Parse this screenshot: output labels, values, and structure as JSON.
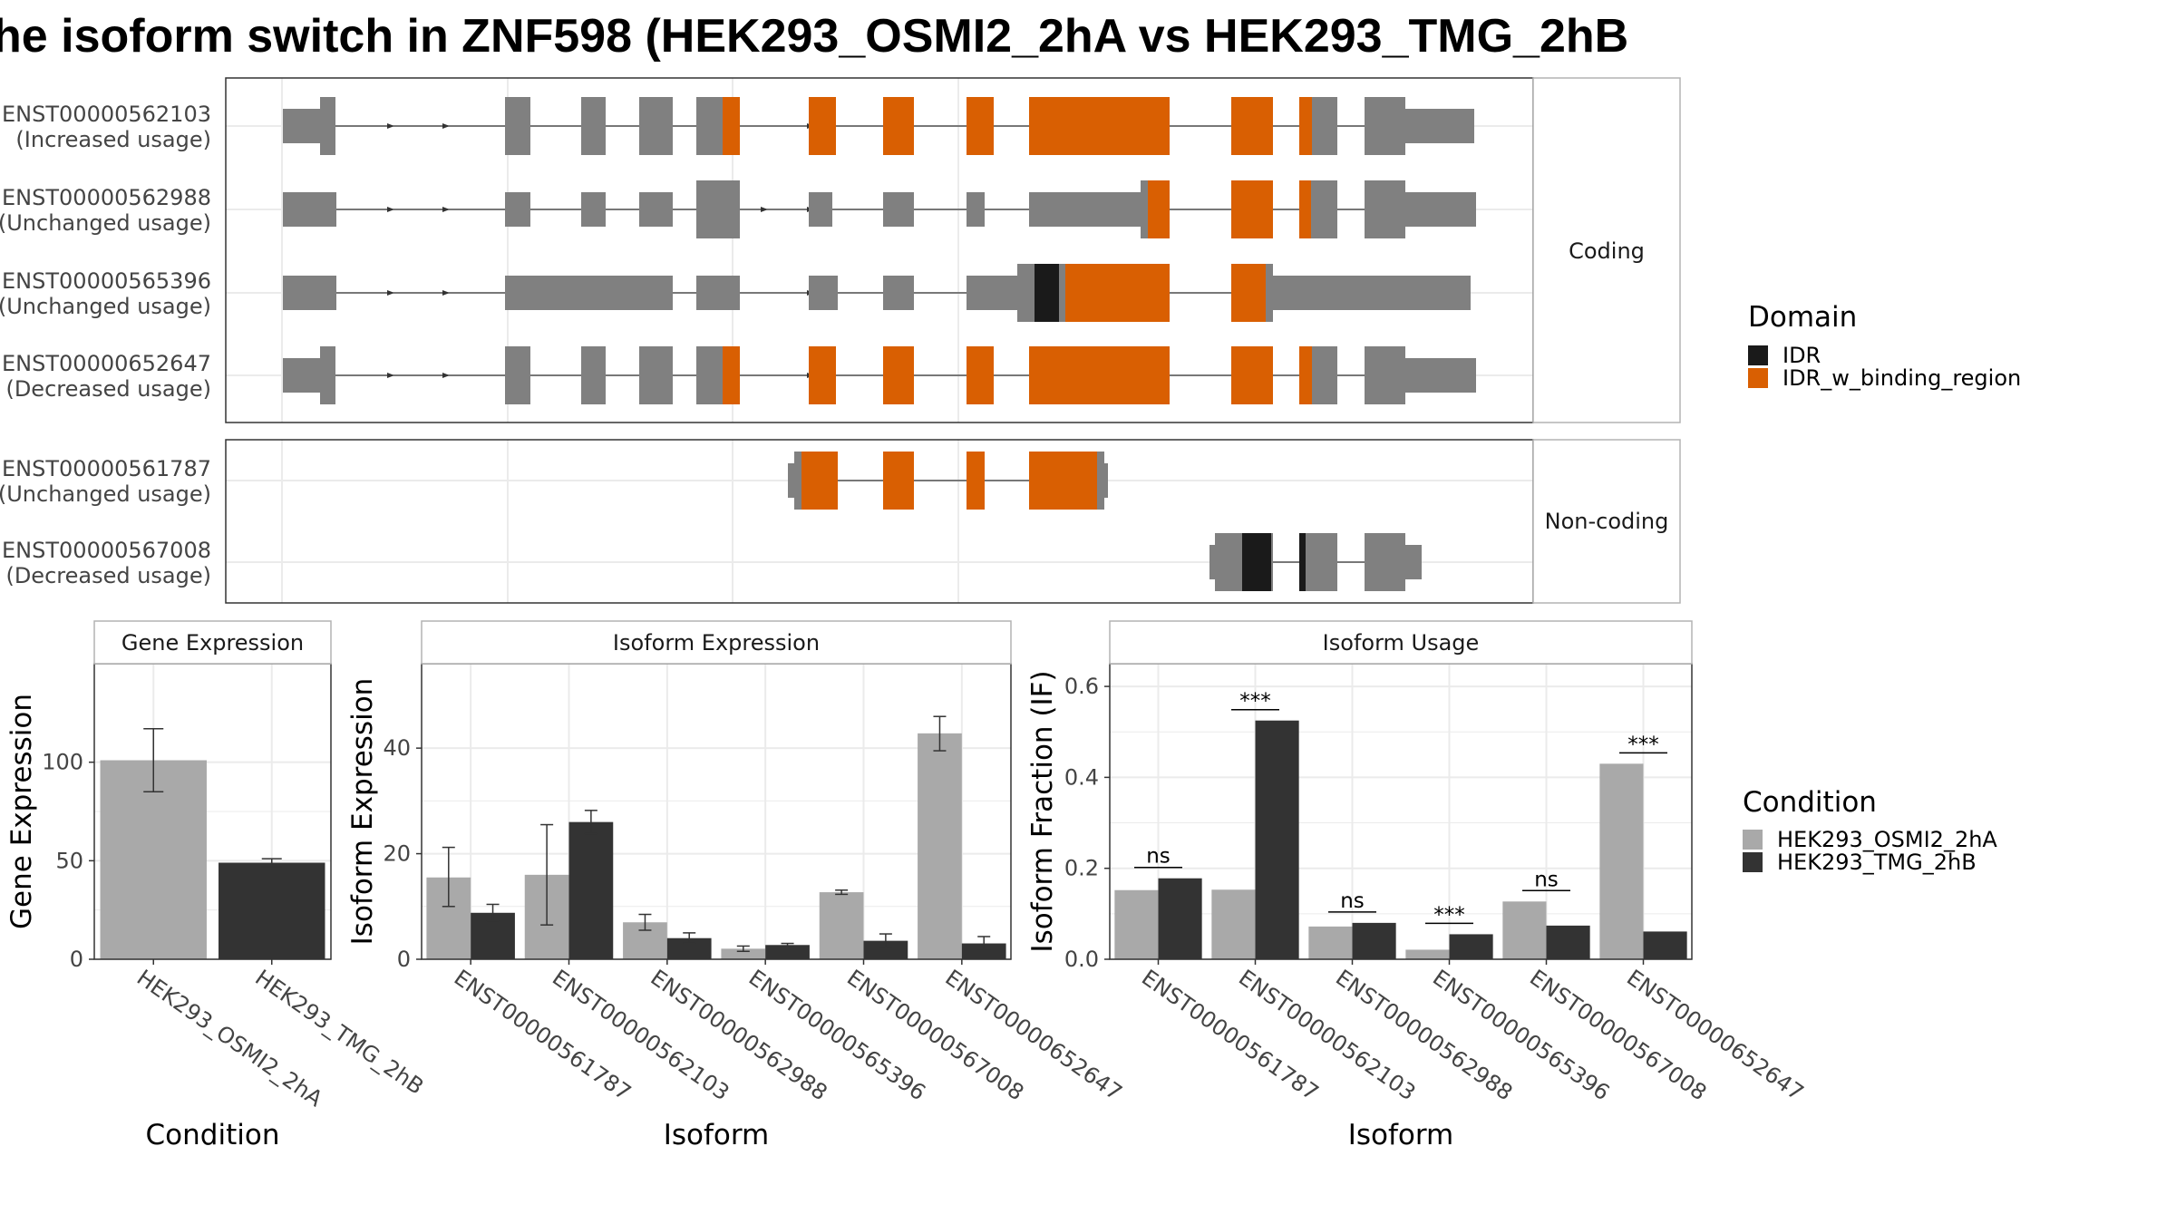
{
  "title": "he isoform switch in ZNF598 (HEK293_OSMI2_2hA vs HEK293_TMG_2hB",
  "colors": {
    "exon": "#808080",
    "IDR": "#1a1a1a",
    "IDR_w_binding_region": "#d95f02",
    "cond1": "#a9a9a9",
    "cond2": "#333333",
    "panel_border": "#333333",
    "strip_border": "#b3b3b3",
    "grid": "#ebebeb"
  },
  "structure": {
    "coding_strip": "Coding",
    "noncoding_strip": "Non-coding",
    "coding": [
      {
        "id": "ENST00000562103",
        "usage": "(Increased usage)"
      },
      {
        "id": "ENST00000562988",
        "usage": "(Unchanged usage)"
      },
      {
        "id": "ENST00000565396",
        "usage": "(Unchanged usage)"
      },
      {
        "id": "ENST00000652647",
        "usage": "(Decreased usage)"
      }
    ],
    "noncoding": [
      {
        "id": "ENST00000561787",
        "usage": "(Unchanged usage)"
      },
      {
        "id": "ENST00000567008",
        "usage": "(Decreased usage)"
      }
    ]
  },
  "legend": {
    "domain_title": "Domain",
    "domain_items": [
      "IDR",
      "IDR_w_binding_region"
    ],
    "condition_title": "Condition",
    "condition_items": [
      "HEK293_OSMI2_2hA",
      "HEK293_TMG_2hB"
    ]
  },
  "chart_data": [
    {
      "type": "bar",
      "title": "Gene Expression",
      "xlabel": "Condition",
      "ylabel": "Gene Expression",
      "categories": [
        "HEK293_OSMI2_2hA",
        "HEK293_TMG_2hB"
      ],
      "values": [
        101,
        49
      ],
      "err_low": [
        85,
        47
      ],
      "err_high": [
        117,
        51
      ],
      "ylim": [
        0,
        150
      ],
      "yticks": [
        0,
        50,
        100
      ]
    },
    {
      "type": "bar",
      "title": "Isoform Expression",
      "xlabel": "Isoform",
      "ylabel": "Isoform Expression",
      "categories": [
        "ENST00000561787",
        "ENST00000562103",
        "ENST00000562988",
        "ENST00000565396",
        "ENST00000567008",
        "ENST00000652647"
      ],
      "series": [
        {
          "name": "HEK293_OSMI2_2hA",
          "values": [
            15.5,
            16,
            7,
            2,
            12.7,
            42.8
          ],
          "err_low": [
            10,
            6.5,
            5.5,
            1.5,
            12.3,
            39.5
          ],
          "err_high": [
            21.2,
            25.5,
            8.5,
            2.5,
            13.1,
            46
          ]
        },
        {
          "name": "HEK293_TMG_2hB",
          "values": [
            8.8,
            26,
            4,
            2.7,
            3.5,
            3
          ],
          "err_low": [
            7.3,
            23.8,
            3,
            2.4,
            2.2,
            1.7
          ],
          "err_high": [
            10.4,
            28.2,
            5,
            3.0,
            4.8,
            4.3
          ]
        }
      ],
      "ylim": [
        0,
        56
      ],
      "yticks": [
        0,
        20,
        40
      ]
    },
    {
      "type": "bar",
      "title": "Isoform Usage",
      "xlabel": "Isoform",
      "ylabel": "Isoform Fraction (IF)",
      "categories": [
        "ENST00000561787",
        "ENST00000562103",
        "ENST00000562988",
        "ENST00000565396",
        "ENST00000567008",
        "ENST00000652647"
      ],
      "series": [
        {
          "name": "HEK293_OSMI2_2hA",
          "values": [
            0.152,
            0.153,
            0.072,
            0.021,
            0.127,
            0.43
          ]
        },
        {
          "name": "HEK293_TMG_2hB",
          "values": [
            0.178,
            0.525,
            0.08,
            0.055,
            0.074,
            0.061
          ]
        }
      ],
      "significance": [
        "ns",
        "***",
        "ns",
        "***",
        "ns",
        "***"
      ],
      "ylim": [
        0,
        0.65
      ],
      "yticks": [
        0.0,
        0.2,
        0.4,
        0.6
      ]
    }
  ]
}
